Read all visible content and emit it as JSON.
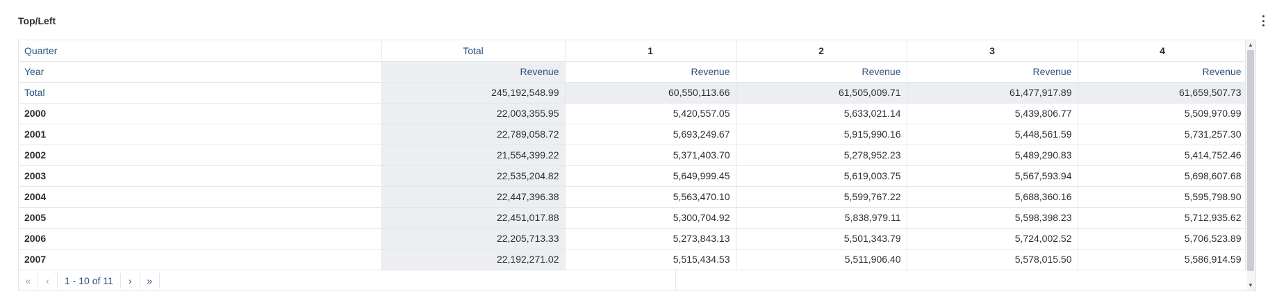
{
  "widget": {
    "title": "Top/Left"
  },
  "table": {
    "row_header_label": "Quarter",
    "measure_row_label": "Year",
    "column_headers": [
      "Total",
      "1",
      "2",
      "3",
      "4"
    ],
    "measure": "Revenue",
    "rows": [
      {
        "label": "Total",
        "is_total": true,
        "values": [
          "245,192,548.99",
          "60,550,113.66",
          "61,505,009.71",
          "61,477,917.89",
          "61,659,507.73"
        ]
      },
      {
        "label": "2000",
        "is_total": false,
        "values": [
          "22,003,355.95",
          "5,420,557.05",
          "5,633,021.14",
          "5,439,806.77",
          "5,509,970.99"
        ]
      },
      {
        "label": "2001",
        "is_total": false,
        "values": [
          "22,789,058.72",
          "5,693,249.67",
          "5,915,990.16",
          "5,448,561.59",
          "5,731,257.30"
        ]
      },
      {
        "label": "2002",
        "is_total": false,
        "values": [
          "21,554,399.22",
          "5,371,403.70",
          "5,278,952.23",
          "5,489,290.83",
          "5,414,752.46"
        ]
      },
      {
        "label": "2003",
        "is_total": false,
        "values": [
          "22,535,204.82",
          "5,649,999.45",
          "5,619,003.75",
          "5,567,593.94",
          "5,698,607.68"
        ]
      },
      {
        "label": "2004",
        "is_total": false,
        "values": [
          "22,447,396.38",
          "5,563,470.10",
          "5,599,767.22",
          "5,688,360.16",
          "5,595,798.90"
        ]
      },
      {
        "label": "2005",
        "is_total": false,
        "values": [
          "22,451,017.88",
          "5,300,704.92",
          "5,838,979.11",
          "5,598,398.23",
          "5,712,935.62"
        ]
      },
      {
        "label": "2006",
        "is_total": false,
        "values": [
          "22,205,713.33",
          "5,273,843.13",
          "5,501,343.79",
          "5,724,002.52",
          "5,706,523.89"
        ]
      },
      {
        "label": "2007",
        "is_total": false,
        "values": [
          "22,192,271.02",
          "5,515,434.53",
          "5,511,906.40",
          "5,578,015.50",
          "5,586,914.59"
        ]
      }
    ]
  },
  "pager": {
    "first_icon": "double-chevron-left-icon",
    "prev_icon": "chevron-left-icon",
    "range_text": "1 - 10 of 11",
    "next_icon": "chevron-right-icon",
    "last_icon": "double-chevron-right-icon"
  },
  "colors": {
    "header_text": "#2a4f7a",
    "total_shade": "#eceef1",
    "border": "#e3e6ea"
  }
}
